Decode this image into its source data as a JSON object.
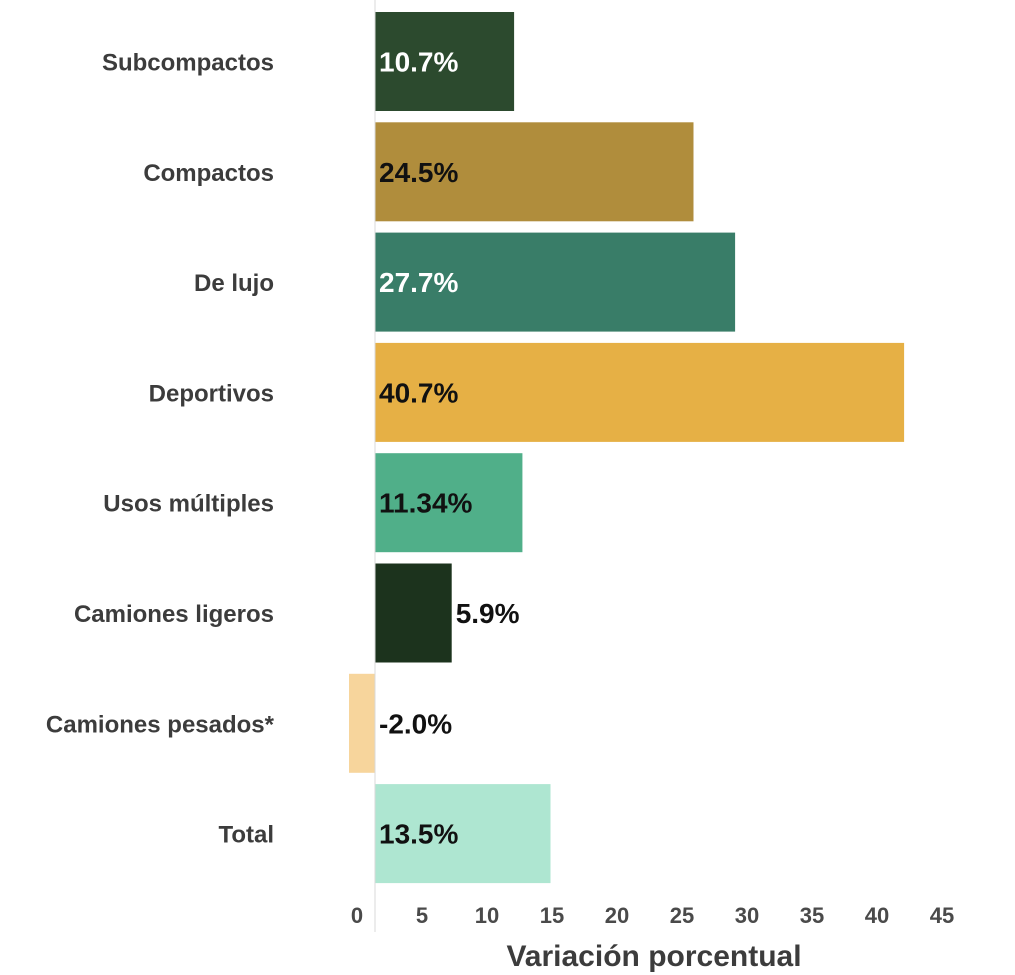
{
  "chart_data": {
    "type": "bar",
    "orientation": "horizontal",
    "categories": [
      "Subcompactos",
      "Compactos",
      "De lujo",
      "Deportivos",
      "Usos múltiples",
      "Camiones ligeros",
      "Camiones pesados*",
      "Total"
    ],
    "values": [
      10.7,
      24.5,
      27.7,
      40.7,
      11.34,
      5.9,
      -2.0,
      13.5
    ],
    "value_labels": [
      "10.7%",
      "24.5%",
      "27.7%",
      "40.7%",
      "11.34%",
      "5.9%",
      "-2.0%",
      "13.5%"
    ],
    "colors": [
      "#2c4a2e",
      "#b08d3c",
      "#397d68",
      "#e6b045",
      "#50af89",
      "#1c331d",
      "#f7d59c",
      "#aee6d1"
    ],
    "label_colors": [
      "#ffffff",
      "#111111",
      "#ffffff",
      "#111111",
      "#111111",
      "#111111",
      "#111111",
      "#111111"
    ],
    "xlabel": "Variación porcentual",
    "ylabel": "",
    "title": "",
    "xlim": [
      0,
      45
    ],
    "xticks": [
      0,
      5,
      10,
      15,
      20,
      25,
      30,
      35,
      40,
      45
    ],
    "grid": false,
    "legend": "none"
  }
}
